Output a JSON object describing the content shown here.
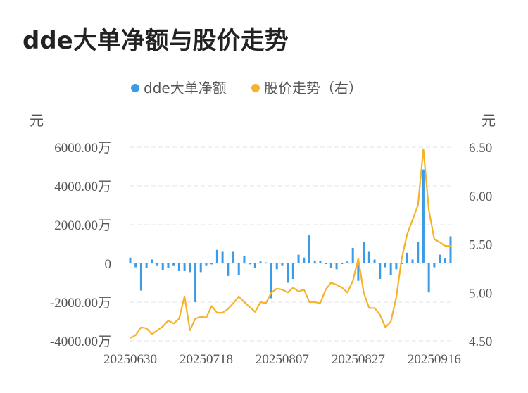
{
  "title": "dde大单净额与股价走势",
  "chart_data": {
    "type": "bar+line",
    "legend": {
      "position": "top-center",
      "entries": [
        "dde大单净额",
        "股价走势（右）"
      ]
    },
    "y_left_unit": "元",
    "y_right_unit": "元",
    "y_left_ticks": [
      "6000.00万",
      "4000.00万",
      "2000.00万",
      "0",
      "-2000.00万",
      "-4000.00万"
    ],
    "y_right_ticks": [
      "6.50",
      "6.00",
      "5.50",
      "5.00",
      "4.50"
    ],
    "y_left_range": [
      -4000,
      6000
    ],
    "y_right_range": [
      4.5,
      6.5
    ],
    "x_ticks": [
      {
        "label": "20250630",
        "index": 0
      },
      {
        "label": "20250718",
        "index": 14
      },
      {
        "label": "20250807",
        "index": 28
      },
      {
        "label": "20250827",
        "index": 42
      },
      {
        "label": "20250916",
        "index": 56
      }
    ],
    "series": [
      {
        "name": "dde大单净额",
        "kind": "bar",
        "color": "#3a9be8",
        "values": [
          300,
          -200,
          -1400,
          -250,
          200,
          -100,
          -350,
          -250,
          -100,
          -400,
          -400,
          -450,
          -2000,
          -450,
          -100,
          -50,
          700,
          600,
          -650,
          600,
          -600,
          400,
          -50,
          -250,
          100,
          50,
          -1800,
          -300,
          -100,
          -1000,
          -800,
          450,
          300,
          1450,
          150,
          150,
          0,
          -250,
          -300,
          0,
          100,
          800,
          -900,
          1100,
          600,
          200,
          -800,
          -200,
          -600,
          -300,
          0,
          550,
          200,
          1100,
          4850,
          -1500,
          -200,
          450,
          250,
          1400
        ]
      },
      {
        "name": "股价走势（右）",
        "kind": "line",
        "color": "#f5b22a",
        "values": [
          4.53,
          4.56,
          4.64,
          4.63,
          4.57,
          4.61,
          4.65,
          4.71,
          4.68,
          4.73,
          4.96,
          4.61,
          4.73,
          4.75,
          4.74,
          4.86,
          4.79,
          4.79,
          4.83,
          4.89,
          4.96,
          4.9,
          4.85,
          4.8,
          4.9,
          4.89,
          5.0,
          5.04,
          5.03,
          5.0,
          5.05,
          5.01,
          5.03,
          4.9,
          4.9,
          4.89,
          5.03,
          5.1,
          5.08,
          5.05,
          5.0,
          5.12,
          5.35,
          5.0,
          4.84,
          4.84,
          4.77,
          4.64,
          4.7,
          4.95,
          5.35,
          5.6,
          5.75,
          5.9,
          6.48,
          5.85,
          5.55,
          5.52,
          5.48,
          5.48
        ]
      }
    ]
  }
}
